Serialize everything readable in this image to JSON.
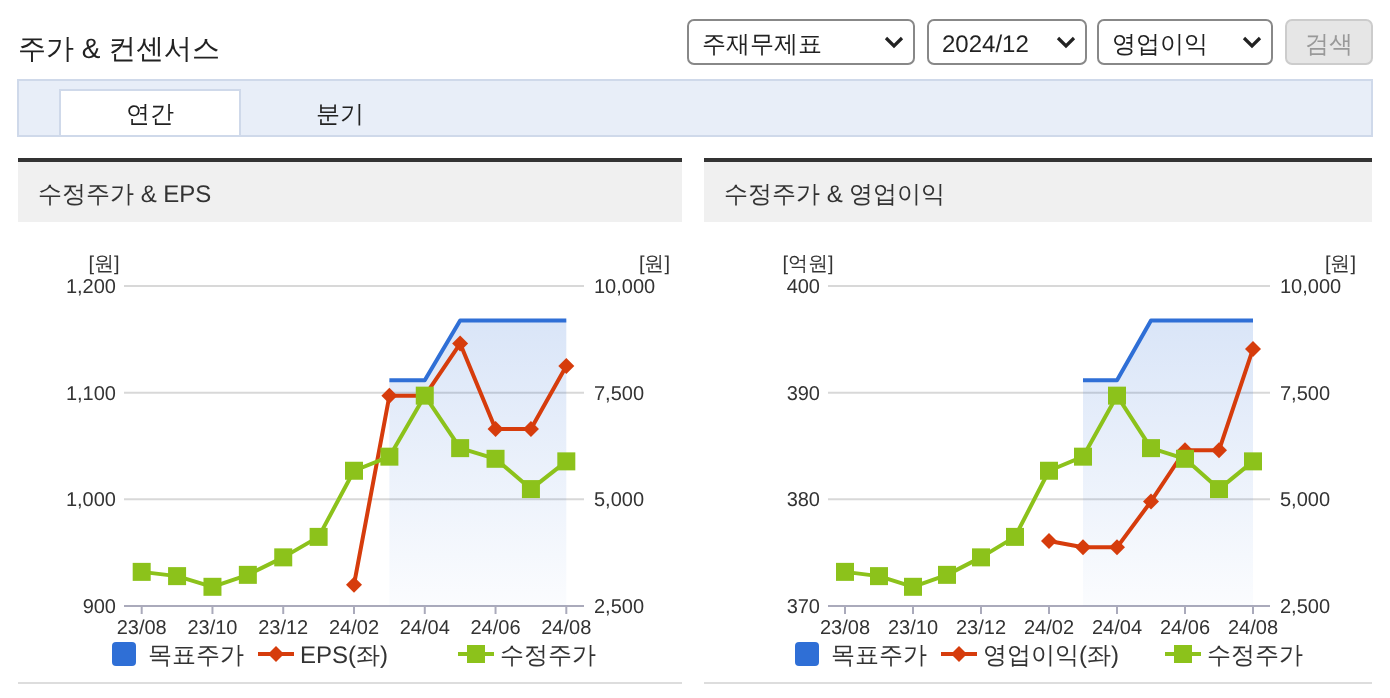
{
  "chart_data": [
    {
      "type": "other",
      "title": "주가 & 컨센서스",
      "annotations": [
        "주재무제표",
        "2024/12",
        "영업이익",
        "검색",
        "연간",
        "분기"
      ]
    },
    {
      "type": "line",
      "title": "수정주가 & EPS",
      "ylabel": "[원]",
      "y2label": "[원]",
      "categories": [
        "23/08",
        null,
        "23/10",
        null,
        "23/12",
        null,
        "24/02",
        null,
        "24/04",
        null,
        "24/06",
        null,
        "24/08"
      ],
      "series": [
        {
          "name": "목표주가",
          "type": "area",
          "axis": "y2",
          "color": "#2f6fd6",
          "marker": "none",
          "values": [
            null,
            null,
            null,
            null,
            null,
            null,
            null,
            7790,
            7790,
            9190,
            9190,
            9190,
            9190
          ]
        },
        {
          "name": "EPS(좌)",
          "type": "line",
          "axis": "y",
          "color": "#d63c0c",
          "marker": "diamond",
          "values": [
            null,
            null,
            null,
            null,
            null,
            null,
            920,
            1097,
            1097,
            1146,
            1066,
            1066,
            1125
          ]
        },
        {
          "name": "수정주가",
          "type": "line",
          "axis": "y2",
          "color": "#8cc21b",
          "marker": "square",
          "values": [
            3300,
            3200,
            2950,
            3230,
            3640,
            4120,
            5670,
            6000,
            7430,
            6200,
            5950,
            5240,
            5890
          ]
        }
      ],
      "ylim": [
        900,
        1200
      ],
      "yticks": [
        900,
        {
          "value": 1000,
          "label": "1,000"
        },
        {
          "value": 1100,
          "label": "1,100"
        },
        {
          "value": 1200,
          "label": "1,200"
        }
      ],
      "y2lim": [
        2500,
        10000
      ],
      "y2ticks": [
        {
          "value": 2500,
          "label": "2,500"
        },
        {
          "value": 5000,
          "label": "5,000"
        },
        {
          "value": 7500,
          "label": "7,500"
        },
        {
          "value": 10000,
          "label": "10,000"
        }
      ],
      "grid": "y",
      "legend": "bottom"
    },
    {
      "type": "line",
      "title": "수정주가 & 영업이익",
      "ylabel": "[억원]",
      "y2label": "[원]",
      "categories": [
        "23/08",
        null,
        "23/10",
        null,
        "23/12",
        null,
        "24/02",
        null,
        "24/04",
        null,
        "24/06",
        null,
        "24/08"
      ],
      "series": [
        {
          "name": "목표주가",
          "type": "area",
          "axis": "y2",
          "color": "#2f6fd6",
          "marker": "none",
          "values": [
            null,
            null,
            null,
            null,
            null,
            null,
            null,
            7790,
            7790,
            9190,
            9190,
            9190,
            9190
          ]
        },
        {
          "name": "영업이익(좌)",
          "type": "line",
          "axis": "y",
          "color": "#d63c0c",
          "marker": "diamond",
          "values": [
            null,
            null,
            null,
            null,
            null,
            null,
            376.1,
            375.5,
            375.5,
            379.8,
            384.6,
            384.6,
            394.1
          ]
        },
        {
          "name": "수정주가",
          "type": "line",
          "axis": "y2",
          "color": "#8cc21b",
          "marker": "square",
          "values": [
            3300,
            3200,
            2950,
            3230,
            3640,
            4120,
            5670,
            6000,
            7430,
            6200,
            5950,
            5240,
            5890
          ]
        }
      ],
      "ylim": [
        370,
        400
      ],
      "yticks": [
        370,
        380,
        390,
        400
      ],
      "y2lim": [
        2500,
        10000
      ],
      "y2ticks": [
        {
          "value": 2500,
          "label": "2,500"
        },
        {
          "value": 5000,
          "label": "5,000"
        },
        {
          "value": 7500,
          "label": "7,500"
        },
        {
          "value": 10000,
          "label": "10,000"
        }
      ],
      "grid": "y",
      "legend": "bottom"
    }
  ]
}
